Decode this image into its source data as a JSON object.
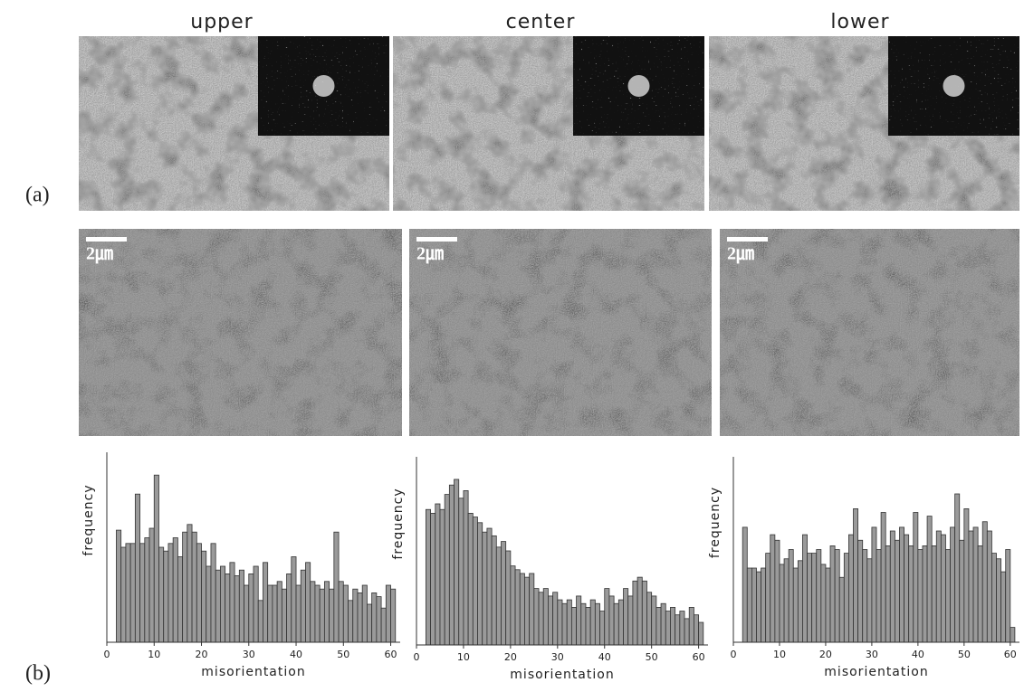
{
  "columns": [
    "upper",
    "center",
    "lower"
  ],
  "panel_labels": [
    "(a)",
    "(b)"
  ],
  "scale_bar_label": "2㎛",
  "chart_data": [
    {
      "type": "histogram",
      "x_label": "misorientation",
      "y_label": "frequency",
      "color": "#9a9a9a",
      "bins": [
        2,
        3,
        4,
        5,
        6,
        7,
        8,
        9,
        10,
        11,
        12,
        13,
        14,
        15,
        16,
        17,
        18,
        19,
        20,
        21,
        22,
        23,
        24,
        25,
        26,
        27,
        28,
        29,
        30,
        31,
        32,
        33,
        34,
        35,
        36,
        37,
        38,
        39,
        40,
        41,
        42,
        43,
        44,
        45,
        46,
        47,
        48,
        49,
        50,
        51,
        52,
        53,
        54,
        55,
        56,
        57,
        58,
        59,
        60,
        61
      ],
      "counts": [
        59,
        50,
        52,
        52,
        78,
        52,
        55,
        60,
        88,
        50,
        48,
        52,
        55,
        45,
        58,
        62,
        58,
        52,
        48,
        40,
        52,
        38,
        40,
        36,
        42,
        35,
        38,
        30,
        36,
        40,
        22,
        42,
        30,
        30,
        32,
        28,
        36,
        45,
        30,
        38,
        42,
        32,
        30,
        28,
        32,
        28,
        58,
        32,
        30,
        22,
        28,
        26,
        30,
        20,
        26,
        24,
        18,
        30,
        28
      ],
      "xlim": [
        0,
        62
      ],
      "ylim": [
        0,
        100
      ],
      "xticks": [
        0,
        10,
        20,
        30,
        40,
        50,
        60
      ]
    },
    {
      "type": "histogram",
      "x_label": "misorientation",
      "y_label": "frequency",
      "color": "#9a9a9a",
      "bins": [
        2,
        3,
        4,
        5,
        6,
        7,
        8,
        9,
        10,
        11,
        12,
        13,
        14,
        15,
        16,
        17,
        18,
        19,
        20,
        21,
        22,
        23,
        24,
        25,
        26,
        27,
        28,
        29,
        30,
        31,
        32,
        33,
        34,
        35,
        36,
        37,
        38,
        39,
        40,
        41,
        42,
        43,
        44,
        45,
        46,
        47,
        48,
        49,
        50,
        51,
        52,
        53,
        54,
        55,
        56,
        57,
        58,
        59,
        60,
        61
      ],
      "counts": [
        72,
        70,
        75,
        72,
        80,
        85,
        88,
        78,
        82,
        70,
        68,
        65,
        60,
        62,
        58,
        52,
        55,
        50,
        42,
        40,
        38,
        36,
        38,
        30,
        28,
        30,
        26,
        28,
        24,
        22,
        24,
        20,
        26,
        22,
        20,
        24,
        22,
        18,
        30,
        26,
        22,
        24,
        30,
        26,
        34,
        36,
        34,
        28,
        26,
        20,
        22,
        18,
        20,
        16,
        18,
        14,
        20,
        16,
        12
      ],
      "xlim": [
        0,
        62
      ],
      "ylim": [
        0,
        100
      ],
      "xticks": [
        0,
        10,
        20,
        30,
        40,
        50,
        60
      ]
    },
    {
      "type": "histogram",
      "x_label": "misorientation",
      "y_label": "frequency",
      "color": "#9a9a9a",
      "bins": [
        2,
        3,
        4,
        5,
        6,
        7,
        8,
        9,
        10,
        11,
        12,
        13,
        14,
        15,
        16,
        17,
        18,
        19,
        20,
        21,
        22,
        23,
        24,
        25,
        26,
        27,
        28,
        29,
        30,
        31,
        32,
        33,
        34,
        35,
        36,
        37,
        38,
        39,
        40,
        41,
        42,
        43,
        44,
        45,
        46,
        47,
        48,
        49,
        50,
        51,
        52,
        53,
        54,
        55,
        56,
        57,
        58,
        59,
        60,
        61
      ],
      "counts": [
        62,
        40,
        40,
        38,
        40,
        48,
        58,
        55,
        42,
        45,
        50,
        40,
        44,
        58,
        48,
        48,
        50,
        42,
        40,
        52,
        50,
        35,
        48,
        58,
        72,
        55,
        50,
        45,
        62,
        50,
        70,
        52,
        60,
        55,
        62,
        58,
        52,
        70,
        50,
        52,
        68,
        52,
        60,
        58,
        50,
        62,
        80,
        55,
        72,
        60,
        62,
        52,
        65,
        60,
        48,
        45,
        38,
        50,
        8
      ],
      "xlim": [
        0,
        62
      ],
      "ylim": [
        0,
        100
      ],
      "xticks": [
        0,
        10,
        20,
        30,
        40,
        50,
        60
      ]
    }
  ]
}
